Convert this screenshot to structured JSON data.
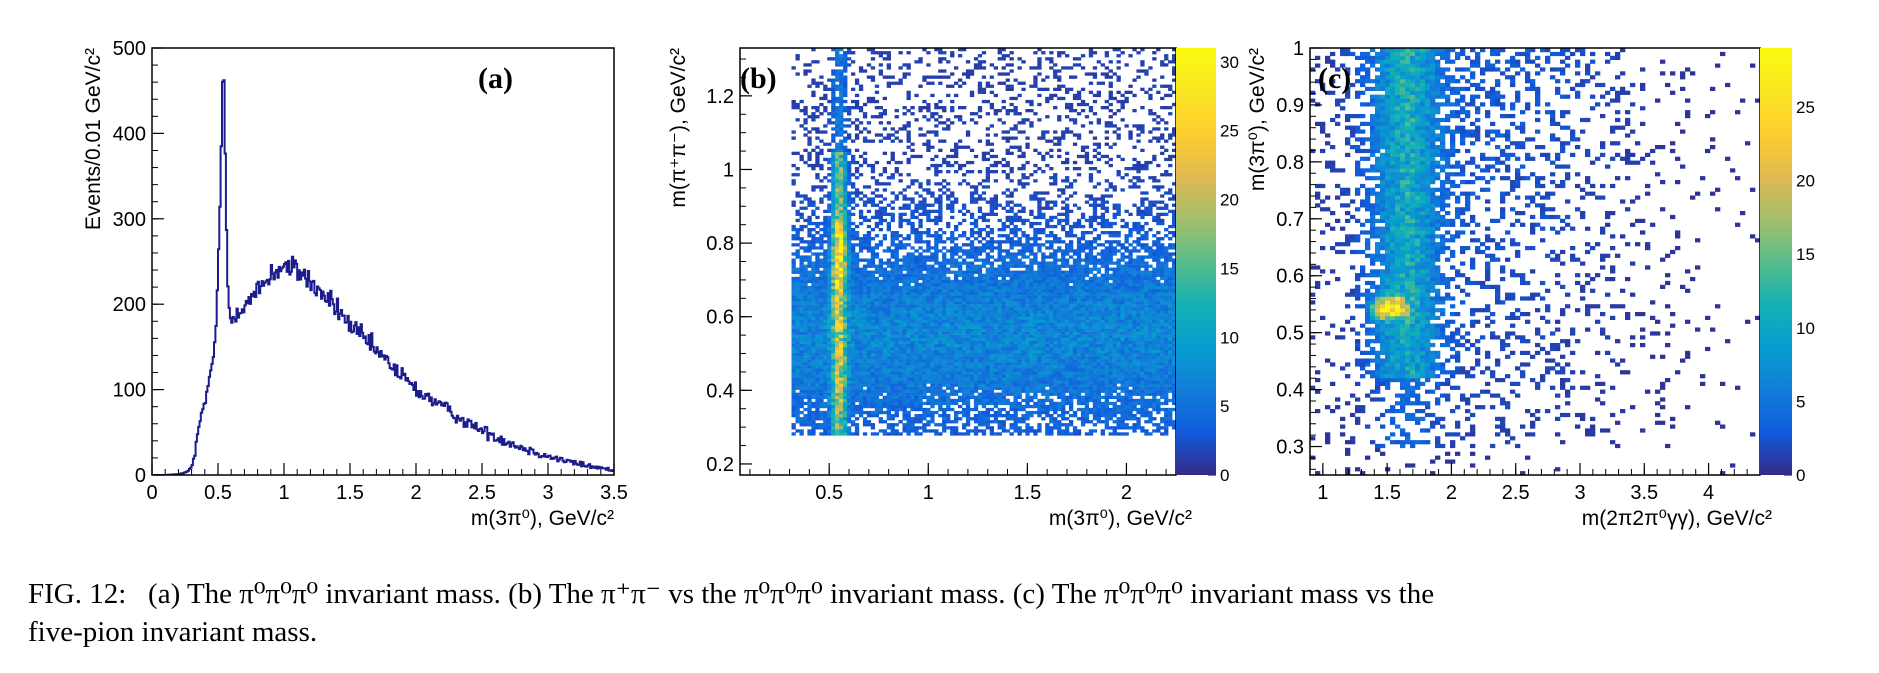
{
  "caption": {
    "label": "FIG. 12:",
    "line1": "(a) The π⁰π⁰π⁰ invariant mass. (b) The π⁺π⁻ vs the π⁰π⁰π⁰ invariant mass. (c) The π⁰π⁰π⁰ invariant mass vs the",
    "line2": "five-pion invariant mass."
  },
  "chart_data": [
    {
      "type": "line",
      "panel_label": "(a)",
      "xlabel": "m(3π⁰), GeV/c²",
      "ylabel": "Events/0.01 GeV/c²",
      "xlim": [
        0,
        3.5
      ],
      "ylim": [
        0,
        500
      ],
      "x_ticks": [
        "0",
        "0.5",
        "1",
        "1.5",
        "2",
        "2.5",
        "3",
        "3.5"
      ],
      "y_ticks": [
        "0",
        "100",
        "200",
        "300",
        "400",
        "500"
      ],
      "color": "#1c1c8c",
      "series": [
        {
          "x": [
            0,
            0.1,
            0.2,
            0.28,
            0.32,
            0.36,
            0.4,
            0.44,
            0.48,
            0.5,
            0.52,
            0.53,
            0.54,
            0.55,
            0.56,
            0.57,
            0.58,
            0.6,
            0.62,
            0.65,
            0.7,
            0.75,
            0.8,
            0.85,
            0.9,
            0.95,
            1.0,
            1.05,
            1.1,
            1.15,
            1.2,
            1.3,
            1.4,
            1.5,
            1.6,
            1.7,
            1.8,
            1.9,
            2.0,
            2.2,
            2.4,
            2.6,
            2.8,
            3.0,
            3.2,
            3.4,
            3.5
          ],
          "y": [
            0,
            0,
            1,
            4,
            20,
            60,
            85,
            110,
            160,
            230,
            340,
            440,
            485,
            420,
            320,
            240,
            200,
            180,
            185,
            195,
            200,
            205,
            215,
            225,
            235,
            240,
            245,
            240,
            240,
            235,
            225,
            210,
            195,
            175,
            160,
            145,
            130,
            115,
            100,
            80,
            60,
            45,
            32,
            22,
            14,
            8,
            5
          ]
        }
      ]
    },
    {
      "type": "heatmap",
      "panel_label": "(b)",
      "xlabel": "m(3π⁰), GeV/c²",
      "ylabel": "m(π⁺π⁻), GeV/c²",
      "xlim": [
        0.05,
        2.25
      ],
      "ylim": [
        0.17,
        1.33
      ],
      "x_ticks": [
        "0.5",
        "1",
        "1.5",
        "2"
      ],
      "y_ticks": [
        "0.2",
        "0.4",
        "0.6",
        "0.8",
        "1",
        "1.2"
      ],
      "colorbar": {
        "range": [
          0,
          31
        ],
        "ticks": [
          "0",
          "5",
          "10",
          "15",
          "20",
          "25",
          "30"
        ]
      },
      "features": [
        {
          "kind": "band",
          "x": 0.55,
          "y_range": [
            0.3,
            1.0
          ],
          "peak_y": 0.77,
          "peak_value": 30
        },
        {
          "kind": "diffuse",
          "x_range": [
            0.3,
            2.25
          ],
          "y_range": [
            0.28,
            1.33
          ],
          "typical_value": 3
        }
      ]
    },
    {
      "type": "heatmap",
      "panel_label": "(c)",
      "xlabel": "m(2π2π⁰γγ), GeV/c²",
      "ylabel": "m(3π⁰), GeV/c²",
      "xlim": [
        0.9,
        4.4
      ],
      "ylim": [
        0.25,
        1.0
      ],
      "x_ticks": [
        "1",
        "1.5",
        "2",
        "2.5",
        "3",
        "3.5",
        "4"
      ],
      "y_ticks": [
        "0.3",
        "0.4",
        "0.5",
        "0.6",
        "0.7",
        "0.8",
        "0.9",
        "1"
      ],
      "colorbar": {
        "range": [
          0,
          29
        ],
        "ticks": [
          "0",
          "5",
          "10",
          "15",
          "20",
          "25"
        ]
      },
      "features": [
        {
          "kind": "spot",
          "x": 1.52,
          "y": 0.545,
          "peak_value": 28
        },
        {
          "kind": "band",
          "x_range": [
            1.3,
            2.0
          ],
          "y_range": [
            0.45,
            1.0
          ],
          "typical_value": 8
        },
        {
          "kind": "diffuse",
          "x_range": [
            0.9,
            4.4
          ],
          "y_range": [
            0.3,
            1.0
          ],
          "typical_value": 2
        }
      ]
    }
  ]
}
